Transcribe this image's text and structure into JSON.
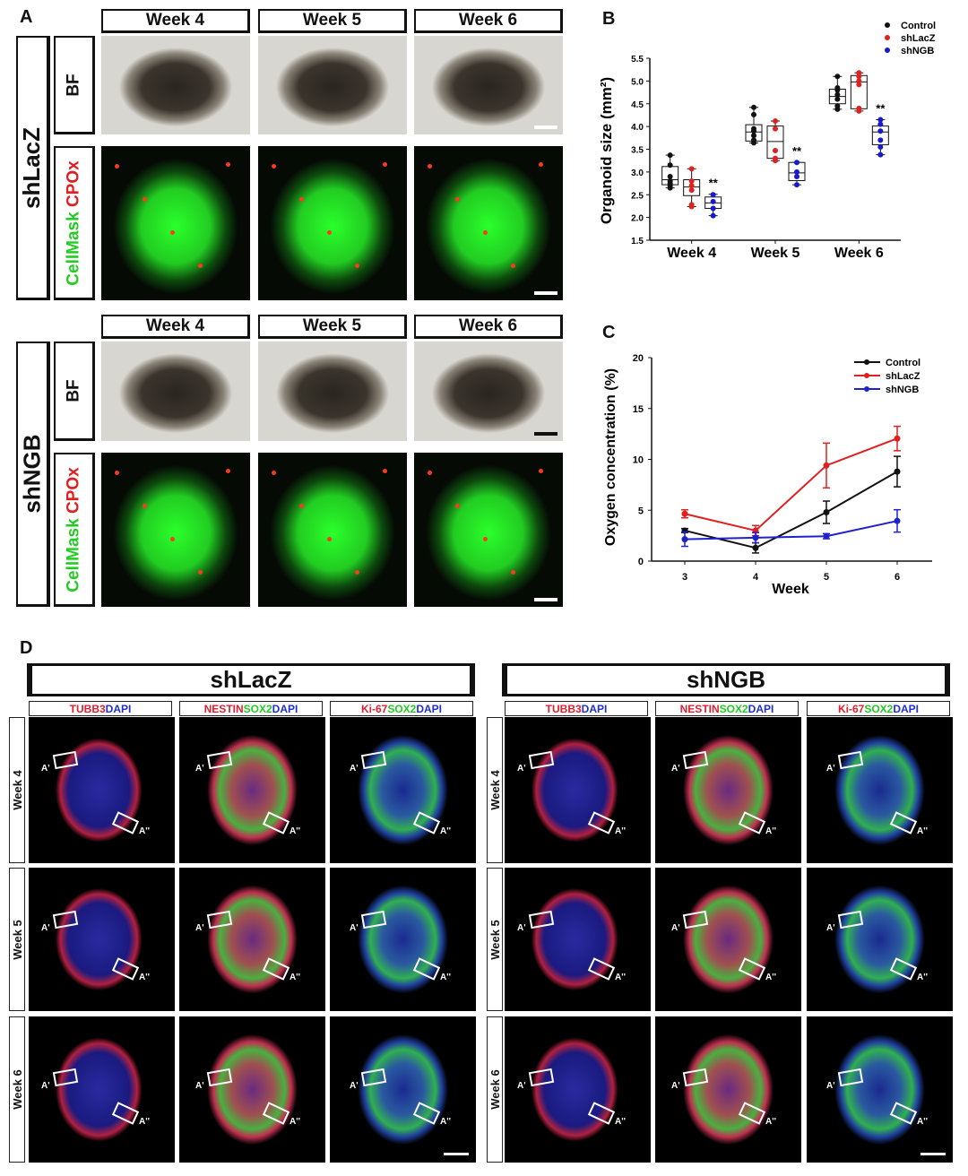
{
  "panel_a": {
    "label": "A",
    "weeks": [
      "Week 4",
      "Week 5",
      "Week 6"
    ],
    "groups": [
      "shLacZ",
      "shNGB"
    ],
    "row_bf": "BF",
    "row_fluor": {
      "part1": "CellMask",
      "part2": "CPOx"
    },
    "colors": {
      "cellmask": "#22cc22",
      "cpox": "#e02020"
    }
  },
  "chart_data": [
    {
      "panel_label": "B",
      "type": "box",
      "ylabel": "Organoid size (mm²)",
      "categories": [
        "Week 4",
        "Week 5",
        "Week 6"
      ],
      "ylim": [
        1.5,
        5.5
      ],
      "yticks": [
        1.5,
        2.0,
        2.5,
        3.0,
        3.5,
        4.0,
        4.5,
        5.0,
        5.5
      ],
      "legend_placement": "top-right",
      "series": [
        {
          "name": "Control",
          "color": "#111111",
          "boxes": [
            {
              "min": 2.65,
              "q1": 2.72,
              "median": 2.83,
              "q3": 3.12,
              "max": 3.37,
              "points": [
                2.65,
                2.7,
                2.75,
                2.8,
                2.9,
                3.15,
                3.37
              ]
            },
            {
              "min": 3.64,
              "q1": 3.68,
              "median": 3.88,
              "q3": 4.04,
              "max": 4.42,
              "points": [
                3.64,
                3.7,
                3.8,
                3.9,
                3.95,
                4.26,
                4.42
              ]
            },
            {
              "min": 4.38,
              "q1": 4.5,
              "median": 4.66,
              "q3": 4.82,
              "max": 5.1,
              "points": [
                4.38,
                4.45,
                4.6,
                4.7,
                4.8,
                4.85,
                5.1
              ]
            }
          ]
        },
        {
          "name": "shLacZ",
          "color": "#dd2222",
          "boxes": [
            {
              "min": 2.24,
              "q1": 2.48,
              "median": 2.67,
              "q3": 2.83,
              "max": 3.07,
              "points": [
                2.24,
                2.28,
                2.6,
                2.7,
                2.8,
                3.07
              ]
            },
            {
              "min": 3.25,
              "q1": 3.3,
              "median": 3.67,
              "q3": 4.01,
              "max": 4.12,
              "points": [
                3.25,
                3.3,
                3.47,
                3.95,
                4.12
              ]
            },
            {
              "min": 4.34,
              "q1": 4.39,
              "median": 4.98,
              "q3": 5.12,
              "max": 5.18,
              "points": [
                4.34,
                4.4,
                4.92,
                5.0,
                5.1,
                5.18
              ]
            }
          ]
        },
        {
          "name": "shNGB",
          "color": "#1a1acc",
          "boxes": [
            {
              "min": 2.04,
              "q1": 2.2,
              "median": 2.32,
              "q3": 2.45,
              "max": 2.51,
              "points": [
                2.04,
                2.2,
                2.35,
                2.5
              ]
            },
            {
              "min": 2.72,
              "q1": 2.81,
              "median": 2.98,
              "q3": 3.21,
              "max": 3.21,
              "points": [
                2.72,
                2.9,
                3.0,
                3.21
              ]
            },
            {
              "min": 3.38,
              "q1": 3.6,
              "median": 3.88,
              "q3": 4.01,
              "max": 4.15,
              "points": [
                3.38,
                3.55,
                3.7,
                3.9,
                4.05,
                4.15
              ]
            }
          ]
        }
      ],
      "annotations": [
        "**",
        "**",
        "**"
      ]
    },
    {
      "panel_label": "C",
      "type": "line",
      "xlabel": "Week",
      "ylabel": "Oxygen concentration (%)",
      "x": [
        3,
        4,
        5,
        6
      ],
      "ylim": [
        0,
        20
      ],
      "yticks": [
        0,
        5,
        10,
        15,
        20
      ],
      "legend_placement": "top-right",
      "series": [
        {
          "name": "Control",
          "color": "#111111",
          "values": [
            3.0,
            1.3,
            4.8,
            8.8
          ],
          "errors": [
            0.2,
            0.5,
            1.1,
            1.5
          ]
        },
        {
          "name": "shLacZ",
          "color": "#e02020",
          "values": [
            4.65,
            3.0,
            9.4,
            12.05
          ],
          "errors": [
            0.4,
            0.5,
            2.2,
            1.2
          ]
        },
        {
          "name": "shNGB",
          "color": "#2020cc",
          "values": [
            2.15,
            2.3,
            2.45,
            3.95
          ],
          "errors": [
            0.7,
            0.5,
            0.25,
            1.1
          ]
        }
      ]
    }
  ],
  "panel_d": {
    "label": "D",
    "groups": [
      "shLacZ",
      "shNGB"
    ],
    "rows": [
      "Week 4",
      "Week 5",
      "Week 6"
    ],
    "stains": [
      [
        {
          "t": "TUBB3",
          "c": "#e02030"
        },
        {
          "t": " DAPI",
          "c": "#2030d0"
        }
      ],
      [
        {
          "t": "NESTIN",
          "c": "#e02030"
        },
        {
          "t": " SOX2",
          "c": "#22cc22"
        },
        {
          "t": " DAPI",
          "c": "#2030d0"
        }
      ],
      [
        {
          "t": "Ki-67",
          "c": "#e02030"
        },
        {
          "t": " SOX2",
          "c": "#22cc22"
        },
        {
          "t": " DAPI",
          "c": "#2030d0"
        }
      ]
    ],
    "roi_labels": [
      "A'",
      "A''"
    ]
  }
}
